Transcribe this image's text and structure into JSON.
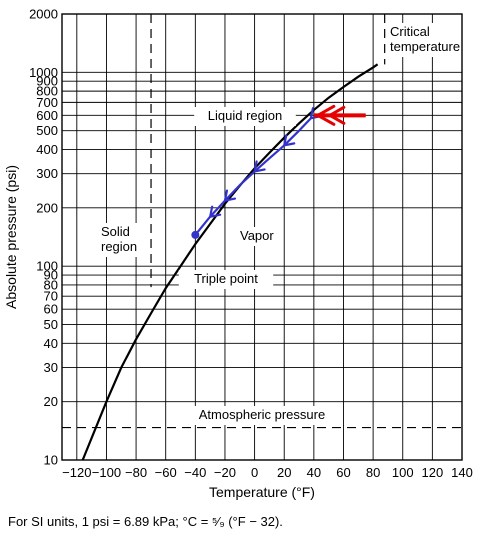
{
  "chart_data": {
    "type": "line",
    "xlabel": "Temperature (°F)",
    "ylabel": "Absolute pressure (psi)",
    "xlim": [
      -130,
      140
    ],
    "ylim": [
      10,
      2000
    ],
    "yscale": "log",
    "grid": true,
    "x_ticks": [
      "−120",
      "−100",
      "−80",
      "−60",
      "−40",
      "−20",
      "0",
      "20",
      "40",
      "60",
      "80",
      "100",
      "120",
      "140"
    ],
    "x_tick_values": [
      -120,
      -100,
      -80,
      -60,
      -40,
      -20,
      0,
      20,
      40,
      60,
      80,
      100,
      120,
      140
    ],
    "y_ticks": [
      "10",
      "20",
      "30",
      "40",
      "50",
      "60",
      "70",
      "80",
      "90",
      "100",
      "200",
      "300",
      "400",
      "500",
      "600",
      "700",
      "800",
      "900",
      "1000",
      "2000"
    ],
    "y_tick_values": [
      10,
      20,
      30,
      40,
      50,
      60,
      70,
      80,
      90,
      100,
      200,
      300,
      400,
      500,
      600,
      700,
      800,
      900,
      1000,
      2000
    ],
    "series": [
      {
        "color": "#000000",
        "x": [
          -116,
          -100,
          -90,
          -80,
          -70,
          -60,
          -50,
          -40,
          -30,
          -20,
          -10,
          0,
          10,
          20,
          30,
          40,
          50,
          60,
          70,
          80,
          83
        ],
        "y": [
          10,
          20,
          30,
          42,
          57,
          77,
          100,
          130,
          165,
          210,
          260,
          320,
          385,
          460,
          545,
          640,
          740,
          840,
          950,
          1060,
          1100
        ]
      },
      {
        "color": "#3333cc",
        "x": [
          -40,
          -30,
          -20,
          -10,
          0,
          10,
          20,
          30,
          38
        ],
        "y": [
          145,
          180,
          218,
          262,
          308,
          360,
          420,
          500,
          580
        ]
      }
    ],
    "region_labels": {
      "critical": "Critical\ntemperature",
      "liquid": "Liquid region",
      "solid": "Solid\nregion",
      "vapor": "Vapor",
      "triple": "Triple point",
      "atmospheric": "Atmospheric pressure"
    },
    "reference_lines": {
      "atmospheric_psi": 14.7,
      "triple_point_temp_f": -69.9,
      "critical_temp_f": 87.8
    },
    "red_arrow": {
      "color": "#e60000",
      "x_from": 75,
      "x_to": 40,
      "y": 600
    },
    "blue_arrowheads_x": [
      20,
      0,
      -20,
      -30,
      38
    ],
    "blue_dot": {
      "x": -40,
      "y": 145
    }
  },
  "footnote": "For SI units, 1 psi = 6.89 kPa; °C = ⁵⁄₉ (°F − 32)."
}
